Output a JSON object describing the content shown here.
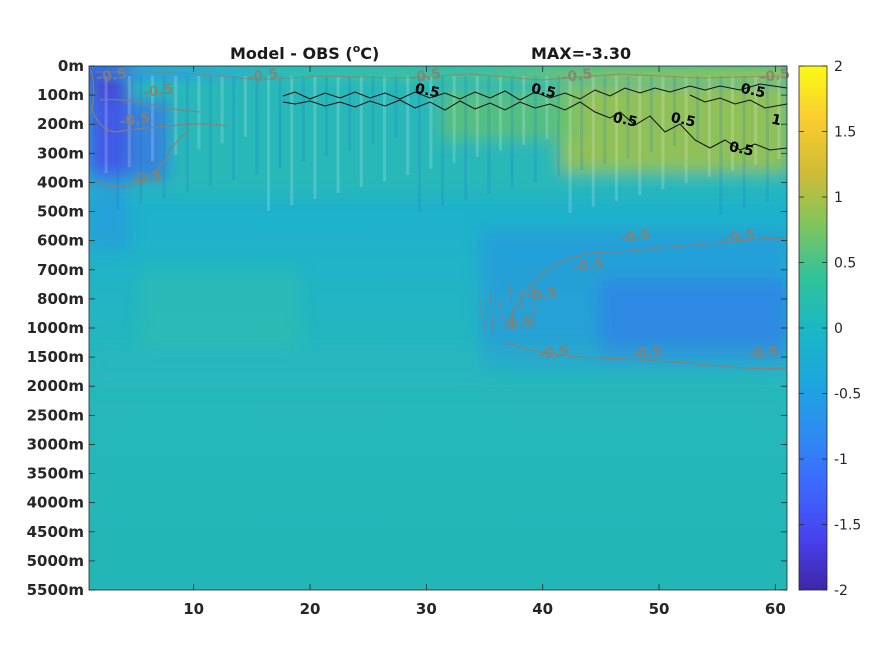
{
  "chart_data": {
    "type": "heatmap",
    "title_left": "Model - OBS (",
    "title_unit_sup": "o",
    "title_unit_end": "C)",
    "title_right": "MAX=-3.30",
    "x_ticks": [
      "10",
      "20",
      "30",
      "40",
      "50",
      "60"
    ],
    "x_tick_values": [
      10,
      20,
      30,
      40,
      50,
      60
    ],
    "xlim": [
      1,
      61
    ],
    "y_ticks": [
      "0m",
      "100m",
      "200m",
      "300m",
      "400m",
      "500m",
      "600m",
      "700m",
      "800m",
      "1000m",
      "1500m",
      "2000m",
      "2500m",
      "3000m",
      "3500m",
      "4000m",
      "4500m",
      "5000m",
      "5500m"
    ],
    "colorbar": {
      "ticks": [
        "2",
        "1.5",
        "1",
        "0.5",
        "0",
        "-0.5",
        "-1",
        "-1.5",
        "-2"
      ],
      "tick_values": [
        2,
        1.5,
        1,
        0.5,
        0,
        -0.5,
        -1,
        -1.5,
        -2
      ],
      "clim": [
        -2,
        2
      ],
      "colormap": "parula"
    },
    "contour_labels": [
      {
        "text": "0.5",
        "style": "positive",
        "x": 30,
        "depth": "100m"
      },
      {
        "text": "0.5",
        "style": "positive",
        "x": 40,
        "depth": "100m"
      },
      {
        "text": "0.5",
        "style": "positive",
        "x": 47,
        "depth": "200m"
      },
      {
        "text": "0.5",
        "style": "positive",
        "x": 52,
        "depth": "200m"
      },
      {
        "text": "0.5",
        "style": "positive",
        "x": 57,
        "depth": "300m"
      },
      {
        "text": "0.5",
        "style": "positive",
        "x": 58,
        "depth": "100m"
      },
      {
        "text": "1",
        "style": "positive",
        "x": 60,
        "depth": "200m"
      },
      {
        "text": "-0.5",
        "style": "negative",
        "x": 6,
        "depth": "400m"
      },
      {
        "text": "-0.5",
        "style": "negative",
        "x": 5,
        "depth": "200m"
      },
      {
        "text": "-0.5",
        "style": "negative",
        "x": 7,
        "depth": "100m"
      },
      {
        "text": "-0.5",
        "style": "negative",
        "x": 3,
        "depth": "0m"
      },
      {
        "text": "-0.5",
        "style": "negative",
        "x": 16,
        "depth": "0m"
      },
      {
        "text": "-0.5",
        "style": "negative",
        "x": 30,
        "depth": "0m"
      },
      {
        "text": "-0.5",
        "style": "negative",
        "x": 43,
        "depth": "0m"
      },
      {
        "text": "-0.5",
        "style": "negative",
        "x": 60,
        "depth": "0m"
      },
      {
        "text": "-0.5",
        "style": "negative",
        "x": 44,
        "depth": "700m"
      },
      {
        "text": "-0.5",
        "style": "negative",
        "x": 48,
        "depth": "600m"
      },
      {
        "text": "-0.5",
        "style": "negative",
        "x": 57,
        "depth": "600m"
      },
      {
        "text": "-0.5",
        "style": "negative",
        "x": 40,
        "depth": "800m"
      },
      {
        "text": "-0.5",
        "style": "negative",
        "x": 38,
        "depth": "1000m"
      },
      {
        "text": "-0.5",
        "style": "negative",
        "x": 41,
        "depth": "1500m"
      },
      {
        "text": "-0.5",
        "style": "negative",
        "x": 49,
        "depth": "1500m"
      },
      {
        "text": "-0.5",
        "style": "negative",
        "x": 59,
        "depth": "1500m"
      }
    ]
  }
}
